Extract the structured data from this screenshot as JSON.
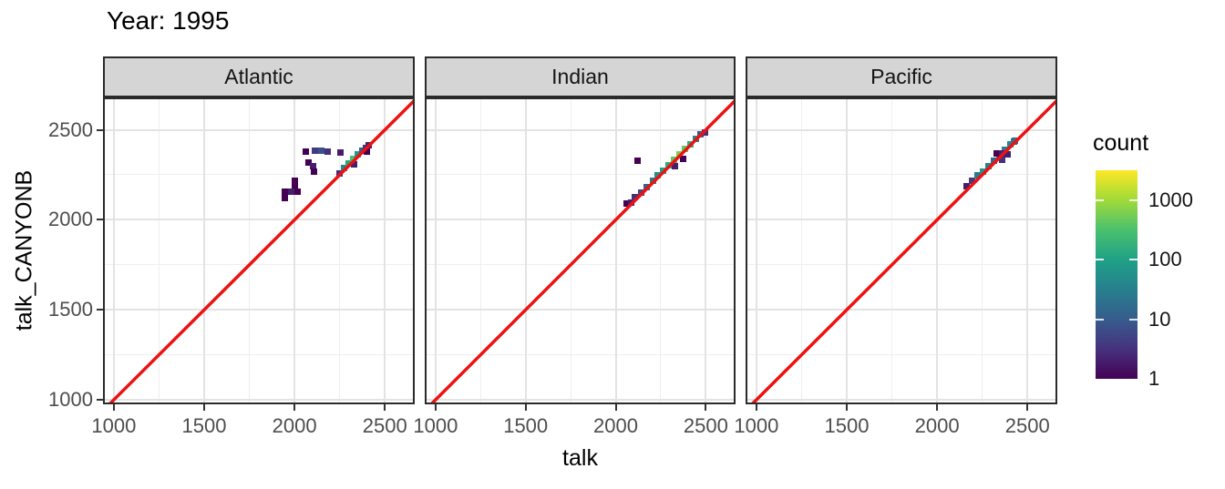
{
  "style": {
    "abline_color": "#EE1111",
    "strip_bg": "#D5D5D5",
    "border_color": "#2b2b2b",
    "grid_major": "#E3E3E3",
    "grid_minor": "#EFEFEF",
    "axis_text_color": "#4D4D4D",
    "viridis_stops": [
      "#440154",
      "#46327E",
      "#365C8D",
      "#277F8E",
      "#1FA187",
      "#4AC16D",
      "#A0DA39",
      "#FDE725"
    ]
  },
  "chart_data": {
    "type": "heatmap",
    "geom": "bin2d",
    "title": "Year: 1995",
    "xlabel": "talk",
    "ylabel": "talk_CANYONB",
    "x_ticks": [
      1000,
      1500,
      2000,
      2500
    ],
    "y_ticks": [
      1000,
      1500,
      2000,
      2500
    ],
    "x_minor": [
      1250,
      1750,
      2250
    ],
    "y_minor": [
      1250,
      1750,
      2250
    ],
    "xlim": [
      940,
      2665
    ],
    "ylim": [
      975,
      2680
    ],
    "abline": {
      "slope": 1,
      "intercept": 0,
      "color": "red"
    },
    "legend": {
      "title": "count",
      "tick_labels": [
        "1000",
        "100",
        "10",
        "1"
      ],
      "tick_log10": [
        3,
        2,
        1,
        0
      ],
      "scale": "viridis",
      "trans": "log10",
      "max_log10": 3.5
    },
    "facets": [
      {
        "label": "Atlantic",
        "bins": [
          [
            2250,
            2260,
            3
          ],
          [
            2275,
            2290,
            40
          ],
          [
            2300,
            2315,
            120
          ],
          [
            2325,
            2340,
            300
          ],
          [
            2350,
            2365,
            80
          ],
          [
            2375,
            2385,
            10
          ],
          [
            2395,
            2400,
            3
          ],
          [
            2410,
            2415,
            2
          ],
          [
            2400,
            2380,
            1
          ],
          [
            2330,
            2310,
            2
          ],
          [
            2060,
            2380,
            1
          ],
          [
            2115,
            2385,
            4
          ],
          [
            2150,
            2385,
            7
          ],
          [
            2185,
            2380,
            3
          ],
          [
            2255,
            2375,
            2
          ],
          [
            2075,
            2320,
            1
          ],
          [
            2105,
            2300,
            2
          ],
          [
            2110,
            2270,
            1
          ],
          [
            2000,
            2215,
            1
          ],
          [
            2000,
            2180,
            1
          ],
          [
            1945,
            2155,
            1
          ],
          [
            1980,
            2155,
            2
          ],
          [
            2015,
            2155,
            1
          ],
          [
            1945,
            2120,
            1
          ]
        ]
      },
      {
        "label": "Indian",
        "bins": [
          [
            2060,
            2090,
            1
          ],
          [
            2085,
            2095,
            2
          ],
          [
            2105,
            2125,
            3
          ],
          [
            2140,
            2150,
            6
          ],
          [
            2170,
            2180,
            12
          ],
          [
            2205,
            2215,
            25
          ],
          [
            2235,
            2245,
            50
          ],
          [
            2265,
            2275,
            90
          ],
          [
            2295,
            2305,
            150
          ],
          [
            2325,
            2335,
            400
          ],
          [
            2355,
            2365,
            600
          ],
          [
            2385,
            2395,
            450
          ],
          [
            2415,
            2420,
            150
          ],
          [
            2445,
            2450,
            40
          ],
          [
            2470,
            2475,
            10
          ],
          [
            2495,
            2485,
            3
          ],
          [
            2120,
            2330,
            1
          ],
          [
            2375,
            2340,
            1
          ],
          [
            2330,
            2300,
            2
          ]
        ]
      },
      {
        "label": "Pacific",
        "bins": [
          [
            2165,
            2185,
            2
          ],
          [
            2195,
            2215,
            4
          ],
          [
            2225,
            2245,
            25
          ],
          [
            2255,
            2270,
            60
          ],
          [
            2285,
            2300,
            35
          ],
          [
            2315,
            2330,
            15
          ],
          [
            2345,
            2360,
            20
          ],
          [
            2375,
            2390,
            30
          ],
          [
            2405,
            2420,
            40
          ],
          [
            2430,
            2440,
            12
          ],
          [
            2330,
            2370,
            1
          ],
          [
            2360,
            2370,
            2
          ],
          [
            2360,
            2335,
            3
          ],
          [
            2390,
            2365,
            2
          ],
          [
            2425,
            2435,
            20
          ]
        ]
      }
    ]
  }
}
